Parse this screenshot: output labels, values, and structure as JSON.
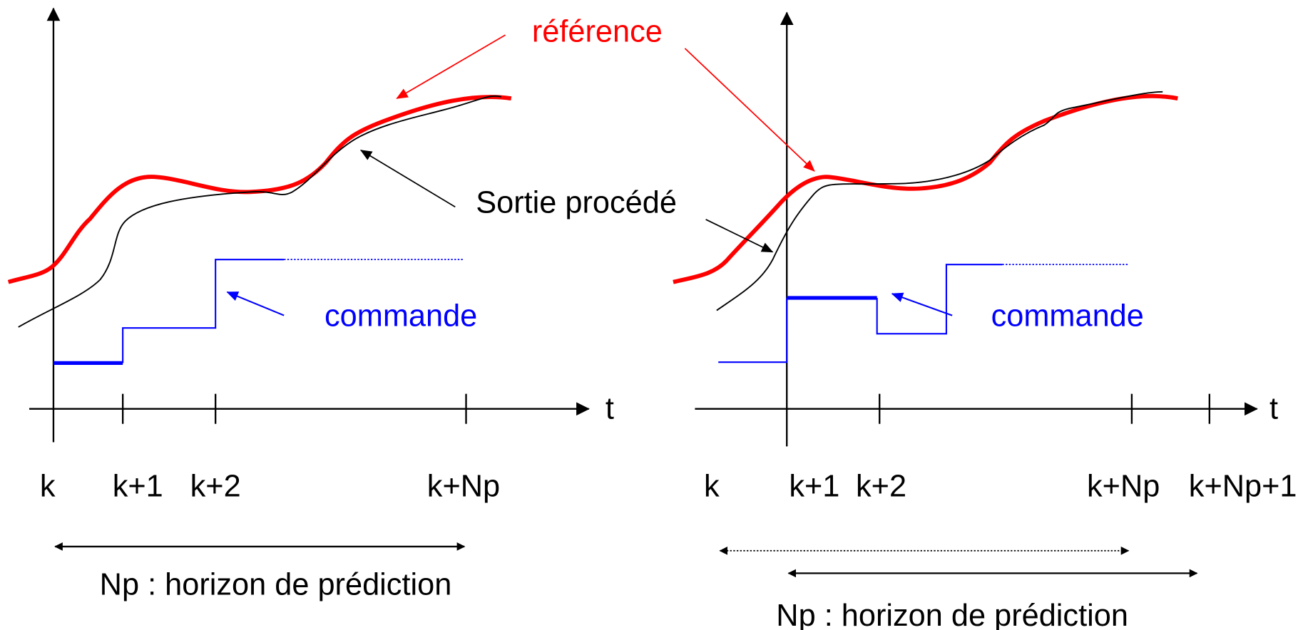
{
  "reference_label": "référence",
  "output_label": "Sortie procédé",
  "panels": [
    {
      "command_label": "commande",
      "axis_label": "t",
      "ticks": [
        "k",
        "k+1",
        "k+2",
        "k+Np"
      ],
      "horizon_label": "Np : horizon de prédiction"
    },
    {
      "command_label": "commande",
      "axis_label": "t",
      "ticks": [
        "k",
        "k+1",
        "k+2",
        "k+Np",
        "k+Np+1"
      ],
      "horizon_label": "Np : horizon de prédiction"
    }
  ]
}
